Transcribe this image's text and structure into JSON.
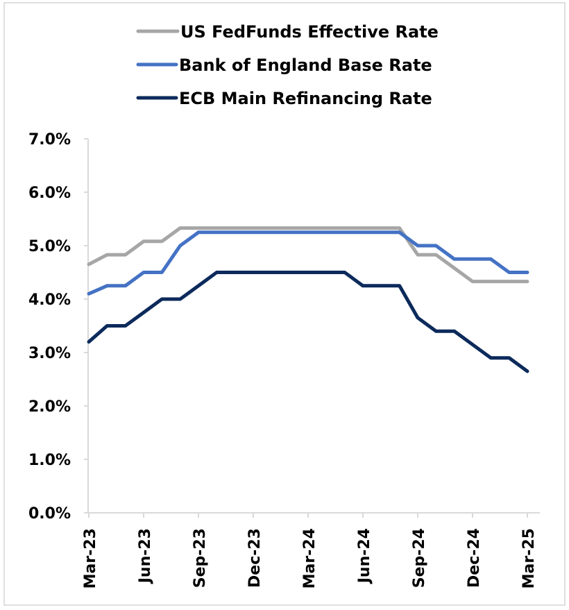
{
  "chart_data": {
    "type": "line",
    "title": "",
    "xlabel": "",
    "ylabel": "",
    "ylim": [
      0,
      7
    ],
    "y_format": "percent",
    "y_ticks": [
      "0.0%",
      "1.0%",
      "2.0%",
      "3.0%",
      "4.0%",
      "5.0%",
      "6.0%",
      "7.0%"
    ],
    "x": [
      "2023-03",
      "2023-04",
      "2023-05",
      "2023-06",
      "2023-07",
      "2023-08",
      "2023-09",
      "2023-10",
      "2023-11",
      "2023-12",
      "2024-01",
      "2024-02",
      "2024-03",
      "2024-04",
      "2024-05",
      "2024-06",
      "2024-07",
      "2024-08",
      "2024-09",
      "2024-10",
      "2024-11",
      "2024-12",
      "2025-01",
      "2025-02",
      "2025-03"
    ],
    "x_tick_labels": [
      "Mar-23",
      "Jun-23",
      "Sep-23",
      "Dec-23",
      "Mar-24",
      "Jun-24",
      "Sep-24",
      "Dec-24",
      "Mar-25"
    ],
    "legend_position": "top",
    "grid": false,
    "series": [
      {
        "name": "US FedFunds Effective  Rate",
        "color": "#a6a6a6",
        "values": [
          4.65,
          4.83,
          4.83,
          5.08,
          5.08,
          5.33,
          5.33,
          5.33,
          5.33,
          5.33,
          5.33,
          5.33,
          5.33,
          5.33,
          5.33,
          5.33,
          5.33,
          5.33,
          4.83,
          4.83,
          4.58,
          4.33,
          4.33,
          4.33,
          4.33
        ]
      },
      {
        "name": "Bank of England Base Rate",
        "color": "#4472c4",
        "values": [
          4.1,
          4.25,
          4.25,
          4.5,
          4.5,
          5.0,
          5.25,
          5.25,
          5.25,
          5.25,
          5.25,
          5.25,
          5.25,
          5.25,
          5.25,
          5.25,
          5.25,
          5.25,
          5.0,
          5.0,
          4.75,
          4.75,
          4.75,
          4.5,
          4.5
        ]
      },
      {
        "name": "ECB Main Refinancing Rate",
        "color": "#0c2a5b",
        "values": [
          3.2,
          3.5,
          3.5,
          3.75,
          4.0,
          4.0,
          4.25,
          4.5,
          4.5,
          4.5,
          4.5,
          4.5,
          4.5,
          4.5,
          4.5,
          4.25,
          4.25,
          4.25,
          3.65,
          3.4,
          3.4,
          3.15,
          2.9,
          2.9,
          2.65
        ]
      }
    ]
  }
}
